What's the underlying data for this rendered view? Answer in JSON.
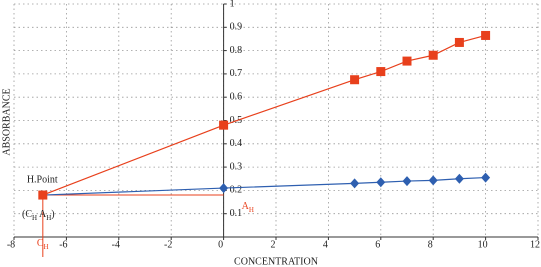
{
  "chart_data": {
    "type": "line",
    "x_label": "CONCENTRATION",
    "y_label": "ABSORBANCE",
    "xlim": [
      -8,
      12
    ],
    "xticks": [
      -8,
      -6,
      -4,
      -2,
      0,
      2,
      4,
      6,
      8,
      10,
      12
    ],
    "ylim": [
      0,
      1
    ],
    "yticks": [
      0.1,
      0.2,
      0.3,
      0.4,
      0.5,
      0.6,
      0.7,
      0.8,
      0.9,
      1
    ],
    "grid": true,
    "h_point": {
      "x": -6.9,
      "y": 0.18,
      "label": "H.Point",
      "color": "#e8401c"
    },
    "coord_label": [
      "(C",
      "H",
      " A",
      "H",
      ")"
    ],
    "c_h_label": [
      "C",
      "H"
    ],
    "a_h_label": [
      "A",
      "H"
    ],
    "series": [
      {
        "color": "#e8401c",
        "marker": "square",
        "x": [
          0,
          5,
          6,
          7,
          8,
          9,
          10
        ],
        "values": [
          0.48,
          0.675,
          0.71,
          0.755,
          0.78,
          0.835,
          0.865
        ]
      },
      {
        "color": "#2e5fb0",
        "marker": "diamond",
        "x": [
          0,
          5,
          6,
          7,
          8,
          9,
          10
        ],
        "values": [
          0.21,
          0.23,
          0.235,
          0.24,
          0.243,
          0.25,
          0.255
        ]
      }
    ]
  }
}
